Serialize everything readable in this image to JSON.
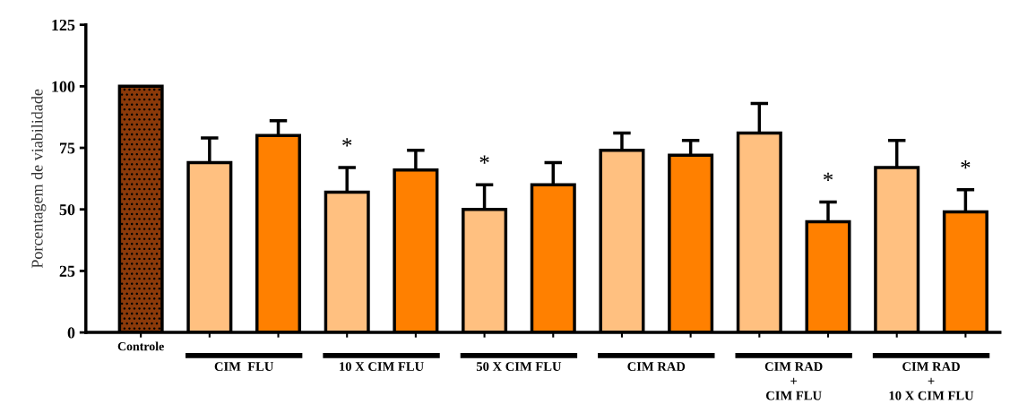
{
  "chart_data": {
    "type": "bar",
    "ylabel": "Porcentagem de viabilidade",
    "categories": [
      "Controle",
      null,
      null,
      null,
      null,
      null,
      null,
      null,
      null,
      null,
      null,
      null,
      null
    ],
    "values": [
      100,
      69,
      80,
      57,
      66,
      50,
      60,
      74,
      72,
      81,
      45,
      67,
      49
    ],
    "errors": [
      null,
      10,
      6,
      10,
      8,
      10,
      9,
      7,
      6,
      12,
      8,
      11,
      9
    ],
    "colors": [
      "#8b3a0a",
      "#ffc080",
      "#ff8000",
      "#ffc080",
      "#ff8000",
      "#ffc080",
      "#ff8000",
      "#ffc080",
      "#ff8000",
      "#ffc080",
      "#ff8000",
      "#ffc080",
      "#ff8000"
    ],
    "value_labels": [
      null,
      null,
      null,
      "*",
      null,
      "*",
      null,
      null,
      null,
      null,
      "*",
      null,
      "*"
    ],
    "annotations": [
      "CIM  FLU",
      "10 X CIM FLU",
      "50 X CIM FLU",
      "CIM RAD",
      "CIM RAD\n+\nCIM FLU",
      "CIM RAD\n+\n10 X CIM FLU"
    ],
    "ylim": [
      0,
      125
    ],
    "yticks": [
      0,
      25,
      50,
      75,
      100,
      125
    ],
    "grid": false,
    "legend": false
  }
}
